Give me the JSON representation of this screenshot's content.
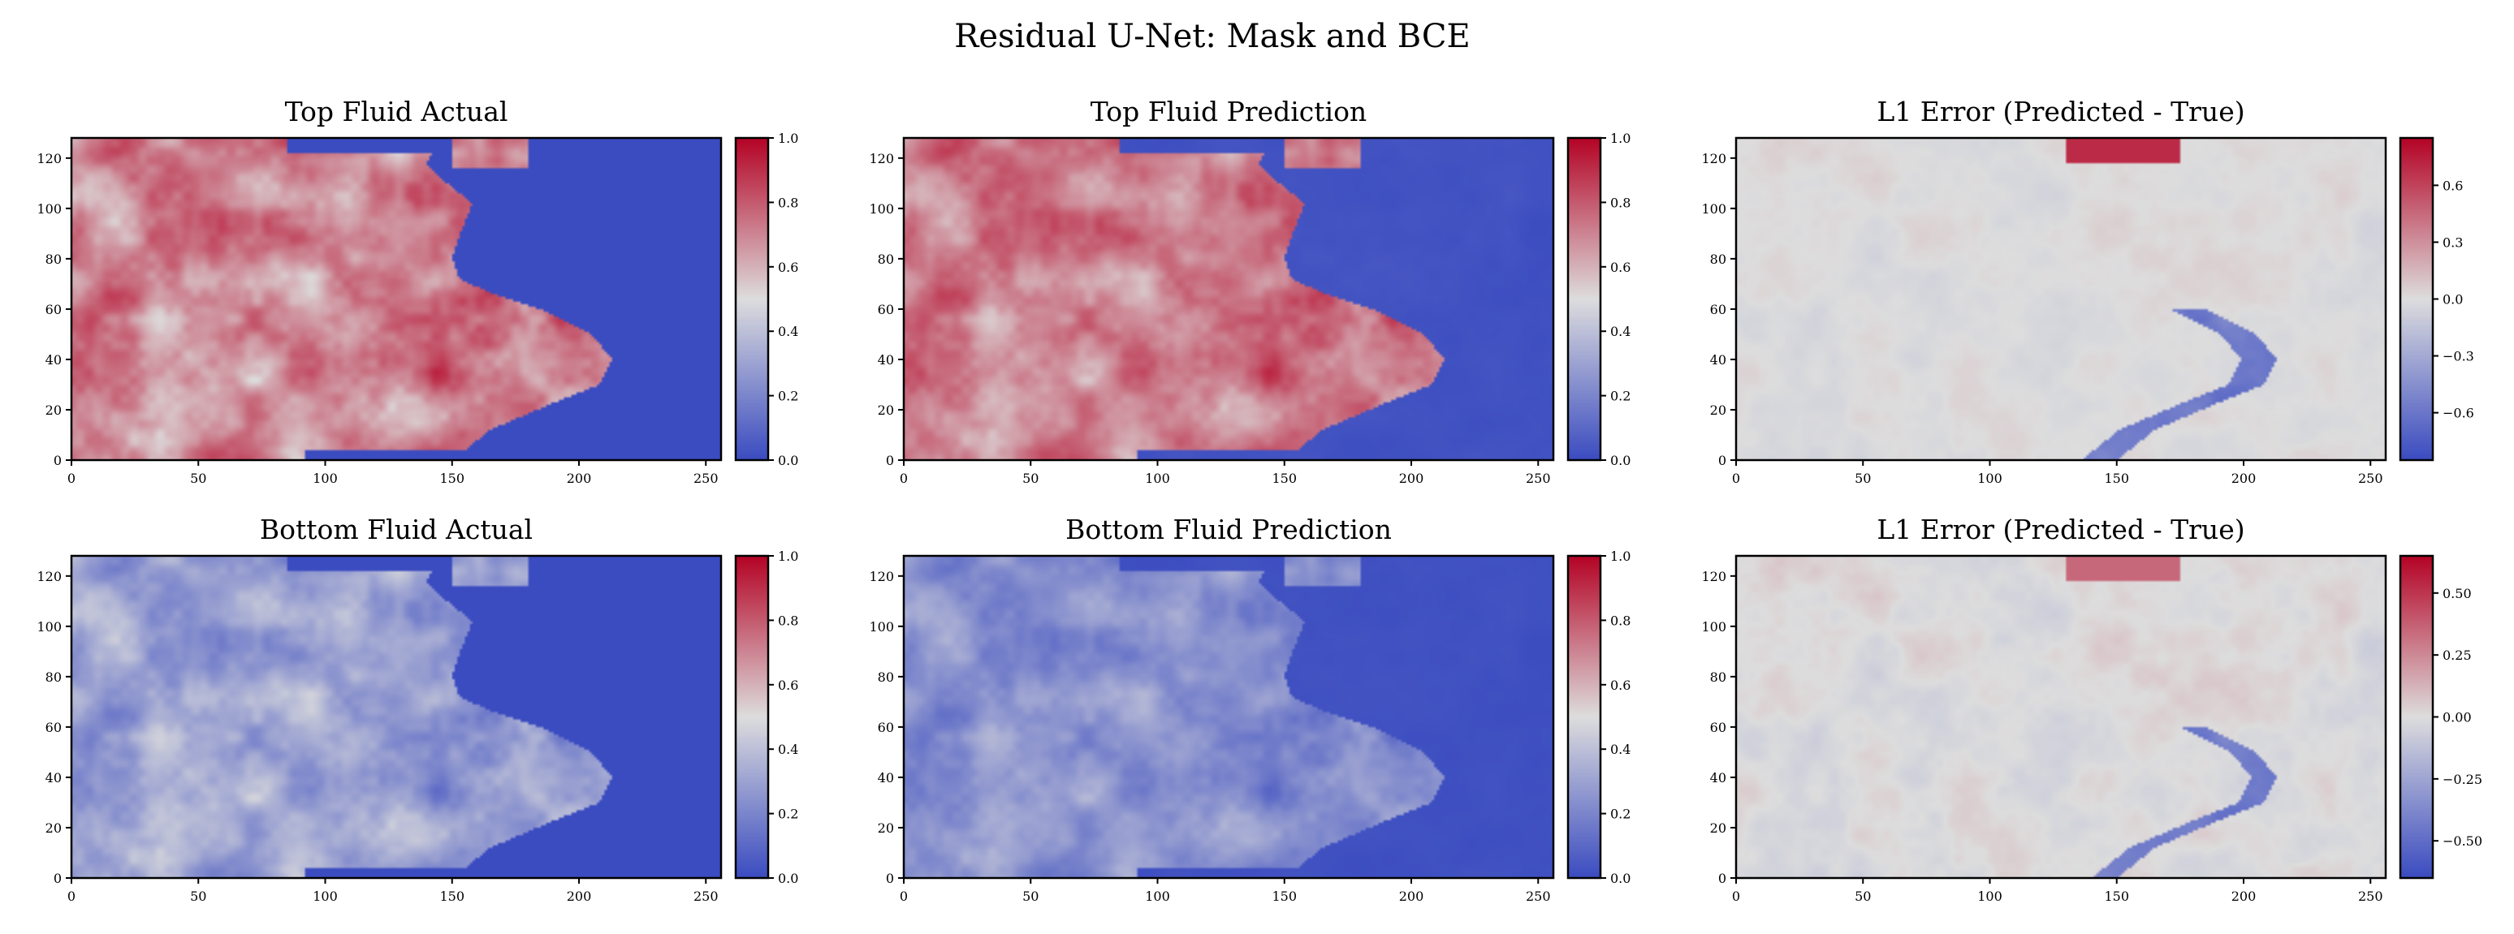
{
  "figure_title": "Residual U-Net: Mask and BCE",
  "colors": {
    "cmap_low": "#3b4cc0",
    "cmap_mid": "#dddddd",
    "cmap_high": "#b40426"
  },
  "chart_data": [
    {
      "type": "heatmap",
      "title": "Top Fluid Actual",
      "cmap": "coolwarm",
      "xlim": [
        0,
        256
      ],
      "ylim": [
        0,
        128
      ],
      "xticks": [
        "0",
        "50",
        "100",
        "150",
        "200",
        "250"
      ],
      "yticks": [
        "0",
        "20",
        "40",
        "60",
        "80",
        "100",
        "120"
      ],
      "colorbar": {
        "range": [
          0.0,
          1.0
        ],
        "ticks": [
          "0.0",
          "0.2",
          "0.4",
          "0.6",
          "0.8",
          "1.0"
        ]
      },
      "field": "top_actual"
    },
    {
      "type": "heatmap",
      "title": "Top Fluid Prediction",
      "cmap": "coolwarm",
      "xlim": [
        0,
        256
      ],
      "ylim": [
        0,
        128
      ],
      "xticks": [
        "0",
        "50",
        "100",
        "150",
        "200",
        "250"
      ],
      "yticks": [
        "0",
        "20",
        "40",
        "60",
        "80",
        "100",
        "120"
      ],
      "colorbar": {
        "range": [
          0.0,
          1.0
        ],
        "ticks": [
          "0.0",
          "0.2",
          "0.4",
          "0.6",
          "0.8",
          "1.0"
        ]
      },
      "field": "top_pred"
    },
    {
      "type": "heatmap",
      "title": "L1 Error (Predicted - True)",
      "cmap": "coolwarm",
      "xlim": [
        0,
        256
      ],
      "ylim": [
        0,
        128
      ],
      "xticks": [
        "0",
        "50",
        "100",
        "150",
        "200",
        "250"
      ],
      "yticks": [
        "0",
        "20",
        "40",
        "60",
        "80",
        "100",
        "120"
      ],
      "colorbar": {
        "range": [
          -0.85,
          0.85
        ],
        "ticks": [
          "−0.6",
          "−0.3",
          "0.0",
          "0.3",
          "0.6"
        ],
        "tick_values": [
          -0.6,
          -0.3,
          0.0,
          0.3,
          0.6
        ]
      },
      "field": "top_err"
    },
    {
      "type": "heatmap",
      "title": "Bottom Fluid Actual",
      "cmap": "coolwarm",
      "xlim": [
        0,
        256
      ],
      "ylim": [
        0,
        128
      ],
      "xticks": [
        "0",
        "50",
        "100",
        "150",
        "200",
        "250"
      ],
      "yticks": [
        "0",
        "20",
        "40",
        "60",
        "80",
        "100",
        "120"
      ],
      "colorbar": {
        "range": [
          0.0,
          1.0
        ],
        "ticks": [
          "0.0",
          "0.2",
          "0.4",
          "0.6",
          "0.8",
          "1.0"
        ]
      },
      "field": "bot_actual"
    },
    {
      "type": "heatmap",
      "title": "Bottom Fluid Prediction",
      "cmap": "coolwarm",
      "xlim": [
        0,
        256
      ],
      "ylim": [
        0,
        128
      ],
      "xticks": [
        "0",
        "50",
        "100",
        "150",
        "200",
        "250"
      ],
      "yticks": [
        "0",
        "20",
        "40",
        "60",
        "80",
        "100",
        "120"
      ],
      "colorbar": {
        "range": [
          0.0,
          1.0
        ],
        "ticks": [
          "0.0",
          "0.2",
          "0.4",
          "0.6",
          "0.8",
          "1.0"
        ]
      },
      "field": "bot_pred"
    },
    {
      "type": "heatmap",
      "title": "L1 Error (Predicted - True)",
      "cmap": "coolwarm",
      "xlim": [
        0,
        256
      ],
      "ylim": [
        0,
        128
      ],
      "xticks": [
        "0",
        "50",
        "100",
        "150",
        "200",
        "250"
      ],
      "yticks": [
        "0",
        "20",
        "40",
        "60",
        "80",
        "100",
        "120"
      ],
      "colorbar": {
        "range": [
          -0.65,
          0.65
        ],
        "ticks": [
          "−0.50",
          "−0.25",
          "0.00",
          "0.25",
          "0.50"
        ],
        "tick_values": [
          -0.5,
          -0.25,
          0.0,
          0.25,
          0.5
        ]
      },
      "field": "bot_err"
    }
  ]
}
